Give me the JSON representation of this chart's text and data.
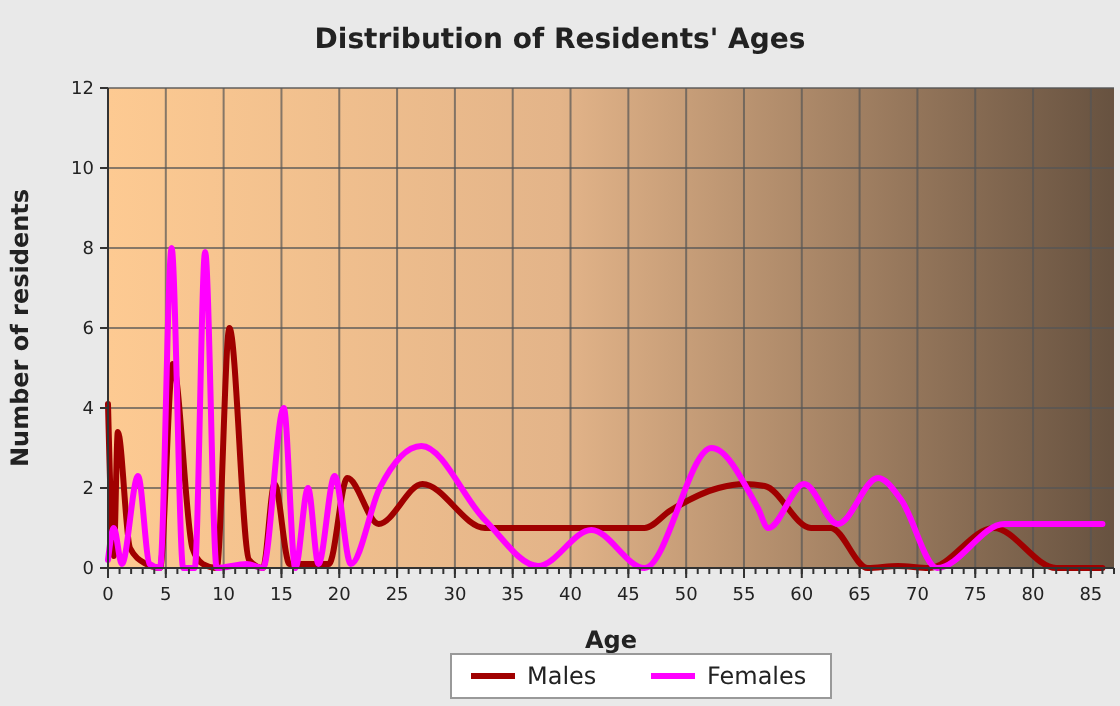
{
  "chart_data": {
    "type": "line",
    "title": "Distribution of Residents' Ages",
    "xlabel": "Age",
    "ylabel": "Number of residents",
    "xlim": [
      0,
      87
    ],
    "ylim": [
      0,
      12
    ],
    "xticks": [
      0,
      5,
      10,
      15,
      20,
      25,
      30,
      35,
      40,
      45,
      50,
      55,
      60,
      65,
      70,
      75,
      80,
      85
    ],
    "yticks": [
      0,
      2,
      4,
      6,
      8,
      10,
      12
    ],
    "grid": true,
    "legend": "bottom",
    "line_style": "solid",
    "marker": "none",
    "series": [
      {
        "name": "Males",
        "color": "#a00000",
        "x": [
          0,
          0.5,
          0.85,
          1.9,
          3.3,
          4.5,
          5.6,
          7.3,
          8.2,
          9.4,
          10.5,
          12.2,
          13.4,
          14.4,
          15.7,
          17.1,
          19.1,
          20.7,
          23.4,
          27.2,
          32.6,
          39,
          46.4,
          48.7,
          52.8,
          55,
          56.8,
          60.8,
          62.5,
          65.7,
          68.3,
          71,
          76.6,
          82,
          86
        ],
        "values": [
          4.1,
          0.3,
          3.4,
          0.5,
          0.1,
          0,
          5.1,
          0.5,
          0.1,
          0,
          6,
          0.2,
          0,
          2.1,
          0.1,
          0.1,
          0.1,
          2.25,
          1.1,
          2.1,
          1,
          1,
          1,
          1.45,
          2,
          2.1,
          2.05,
          1,
          1,
          0,
          0.05,
          0,
          1,
          0,
          0
        ]
      },
      {
        "name": "Females",
        "color": "#ff00ff",
        "x": [
          0,
          0.5,
          1.2,
          2.6,
          3.6,
          4.5,
          5.5,
          6.5,
          7.5,
          8.4,
          9.4,
          12,
          13.4,
          15.2,
          16.2,
          17.3,
          18.2,
          19.6,
          21,
          23.5,
          27.1,
          32.6,
          37.2,
          41.8,
          46.4,
          52.2,
          56.2,
          57.1,
          60.2,
          63.1,
          66.6,
          68.6,
          71.7,
          77.5,
          86
        ],
        "values": [
          0.2,
          1,
          0.1,
          2.3,
          0.1,
          0,
          8,
          0,
          0,
          7.9,
          0,
          0.1,
          0,
          4,
          0,
          2,
          0.1,
          2.3,
          0.1,
          2,
          3.05,
          1.2,
          0.05,
          0.95,
          0,
          3,
          1.5,
          1,
          2.1,
          1.1,
          2.25,
          1.7,
          0,
          1.1,
          1.1
        ]
      }
    ]
  }
}
